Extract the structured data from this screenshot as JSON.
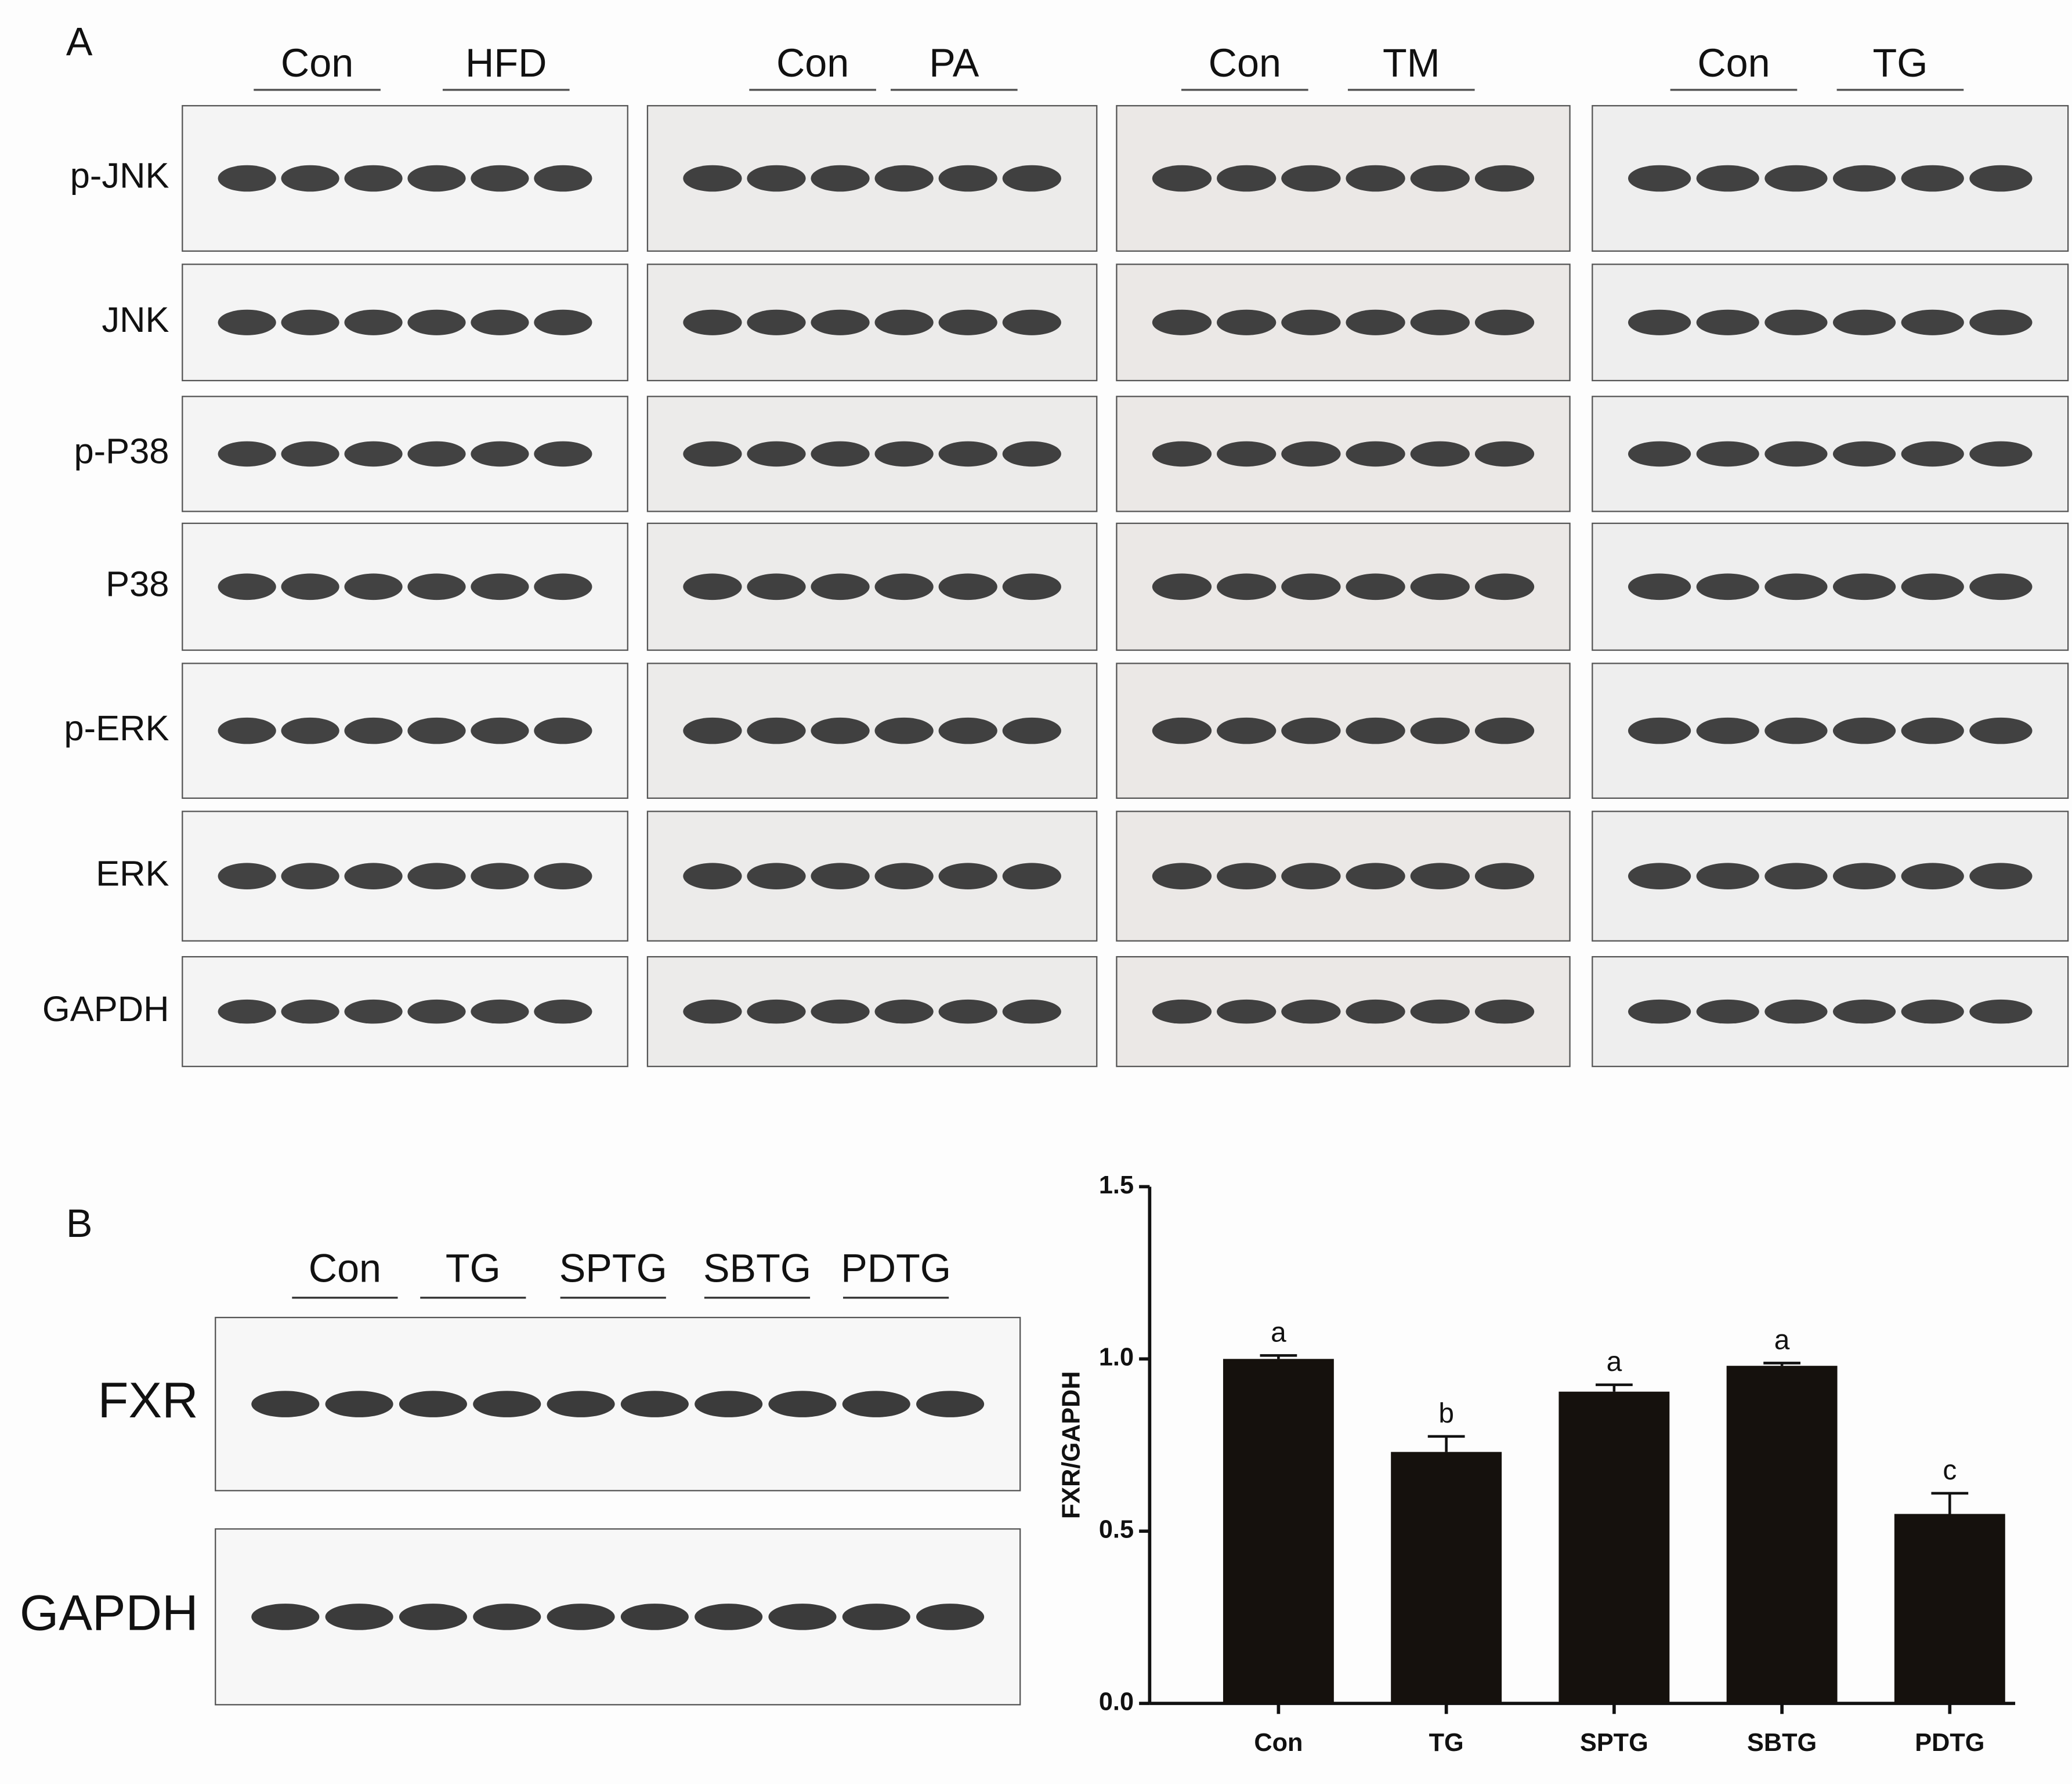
{
  "panel_a": {
    "label": "A",
    "columns": [
      {
        "control": "Con",
        "treatment": "HFD"
      },
      {
        "control": "Con",
        "treatment": "PA"
      },
      {
        "control": "Con",
        "treatment": "TM"
      },
      {
        "control": "Con",
        "treatment": "TG"
      }
    ],
    "proteins": [
      "p-JNK",
      "JNK",
      "p-P38",
      "P38",
      "p-ERK",
      "ERK",
      "GAPDH"
    ]
  },
  "panel_b": {
    "label": "B",
    "groups": [
      "Con",
      "TG",
      "SPTG",
      "SBTG",
      "PDTG"
    ],
    "proteins": [
      "FXR",
      "GAPDH"
    ]
  },
  "chart_data": {
    "type": "bar",
    "y_label": "FXR/GAPDH",
    "categories": [
      "Con",
      "TG",
      "SPTG",
      "SBTG",
      "PDTG"
    ],
    "values": [
      1.0,
      0.73,
      0.905,
      0.98,
      0.55
    ],
    "errors": [
      0.01,
      0.045,
      0.02,
      0.008,
      0.06
    ],
    "annotations": [
      "a",
      "b",
      "a",
      "a",
      "c"
    ],
    "color": "#15110d",
    "ylim": [
      0,
      1.5
    ],
    "yticks": [
      {
        "value": 0,
        "label": "0.0"
      },
      {
        "value": 0.5,
        "label": "0.5"
      },
      {
        "value": 1,
        "label": "1.0"
      },
      {
        "value": 1.5,
        "label": "1.5"
      }
    ]
  }
}
